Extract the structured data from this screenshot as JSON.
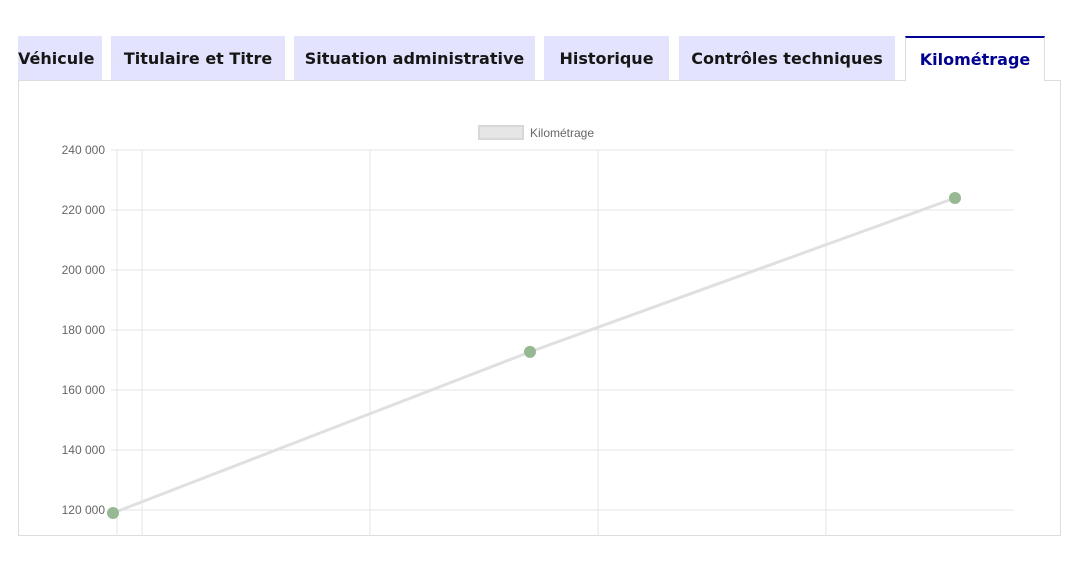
{
  "tabs": [
    {
      "label": "Véhicule",
      "active": false
    },
    {
      "label": "Titulaire et Titre",
      "active": false
    },
    {
      "label": "Situation administrative",
      "active": false
    },
    {
      "label": "Historique",
      "active": false
    },
    {
      "label": "Contrôles techniques",
      "active": false
    },
    {
      "label": "Kilométrage",
      "active": true
    }
  ],
  "colors": {
    "tab_bg": "#e3e3fd",
    "active_accent": "#000091",
    "line": "#e0e0e0",
    "point": "#96b893"
  },
  "chart_data": {
    "type": "line",
    "legend": {
      "label": "Kilométrage",
      "position": "top"
    },
    "yticks": [
      "120 000",
      "140 000",
      "160 000",
      "180 000",
      "200 000",
      "220 000",
      "240 000"
    ],
    "ylim": [
      120000,
      240000
    ],
    "grid": true,
    "series": [
      {
        "name": "Kilométrage",
        "values": [
          119000,
          172700,
          224000
        ]
      }
    ]
  }
}
